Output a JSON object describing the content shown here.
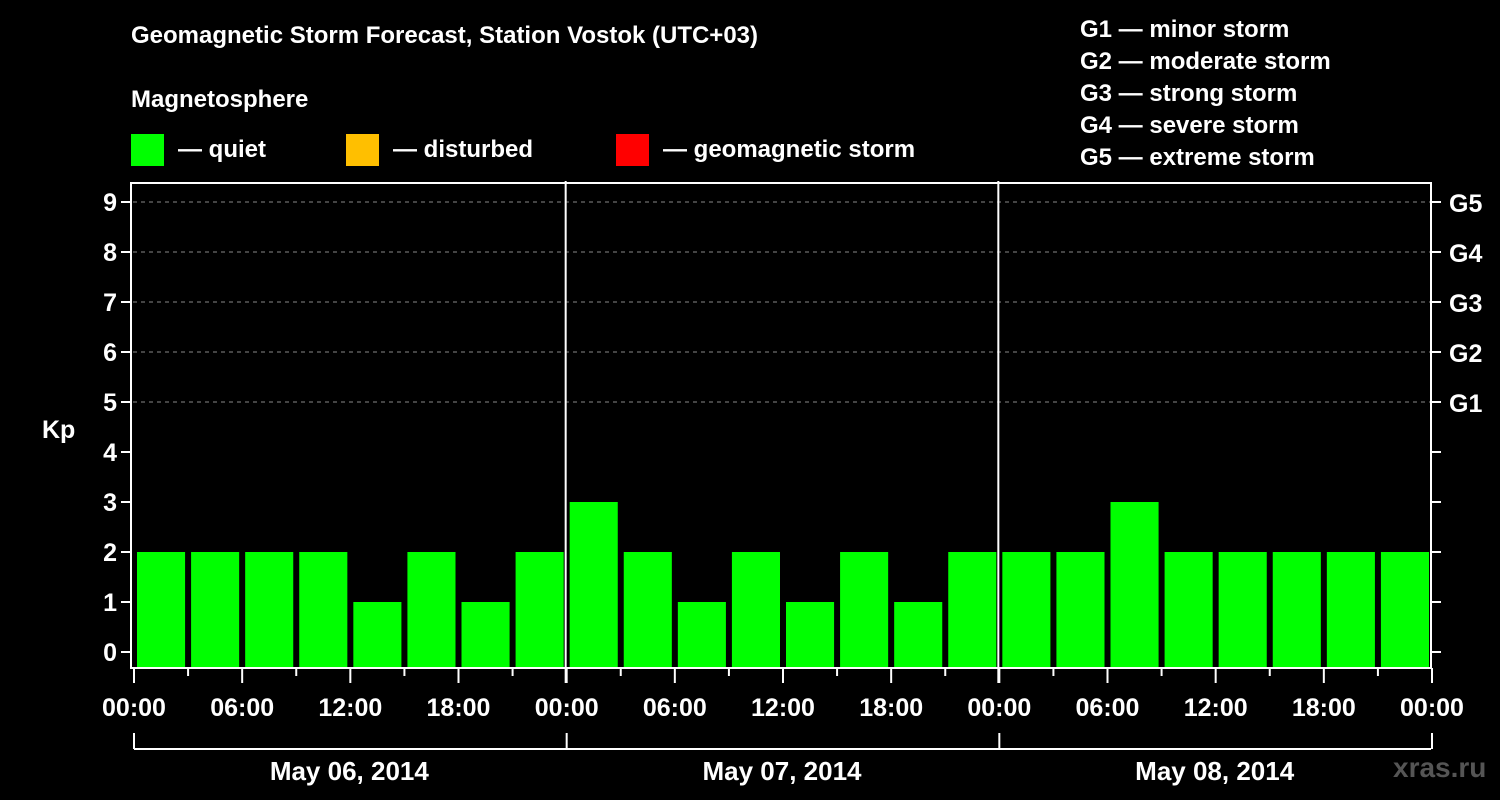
{
  "title": "Geomagnetic Storm Forecast, Station Vostok (UTC+03)",
  "subtitle": "Magnetosphere",
  "legend": [
    {
      "label": "— quiet",
      "color": "#00ff00"
    },
    {
      "label": "— disturbed",
      "color": "#ffbf00"
    },
    {
      "label": "— geomagnetic storm",
      "color": "#ff0000"
    }
  ],
  "g_scale": [
    "G1 — minor storm",
    "G2 — moderate storm",
    "G3 — strong storm",
    "G4 — severe storm",
    "G5 — extreme storm"
  ],
  "watermark": "xras.ru",
  "chart_data": {
    "type": "bar",
    "title": "Geomagnetic Storm Forecast, Station Vostok (UTC+03)",
    "ylabel": "Kp",
    "xlabel": "",
    "ylim": [
      0,
      9
    ],
    "yticks": [
      0,
      1,
      2,
      3,
      4,
      5,
      6,
      7,
      8,
      9
    ],
    "y2_labels": [
      {
        "kp": 5,
        "label": "G1"
      },
      {
        "kp": 6,
        "label": "G2"
      },
      {
        "kp": 7,
        "label": "G3"
      },
      {
        "kp": 8,
        "label": "G4"
      },
      {
        "kp": 9,
        "label": "G5"
      }
    ],
    "grid": "dashed horizontal at Kp 5-9",
    "xtick_labels": [
      "00:00",
      "06:00",
      "12:00",
      "18:00",
      "00:00",
      "06:00",
      "12:00",
      "18:00",
      "00:00",
      "06:00",
      "12:00",
      "18:00",
      "00:00"
    ],
    "days": [
      "May 06, 2014",
      "May 07, 2014",
      "May 08, 2014"
    ],
    "interval_hours": 3,
    "series": [
      {
        "name": "Kp",
        "categories": [
          "May 06 00-03",
          "May 06 03-06",
          "May 06 06-09",
          "May 06 09-12",
          "May 06 12-15",
          "May 06 15-18",
          "May 06 18-21",
          "May 06 21-24",
          "May 07 00-03",
          "May 07 03-06",
          "May 07 06-09",
          "May 07 09-12",
          "May 07 12-15",
          "May 07 15-18",
          "May 07 18-21",
          "May 07 21-24",
          "May 08 00-03",
          "May 08 03-06",
          "May 08 06-09",
          "May 08 09-12",
          "May 08 12-15",
          "May 08 15-18",
          "May 08 18-21",
          "May 08 21-24"
        ],
        "values": [
          2,
          2,
          2,
          2,
          1,
          2,
          1,
          2,
          3,
          2,
          1,
          2,
          1,
          2,
          1,
          2,
          2,
          2,
          3,
          2,
          2,
          2,
          2,
          2
        ],
        "status": "quiet",
        "color": "#00ff00"
      }
    ]
  }
}
